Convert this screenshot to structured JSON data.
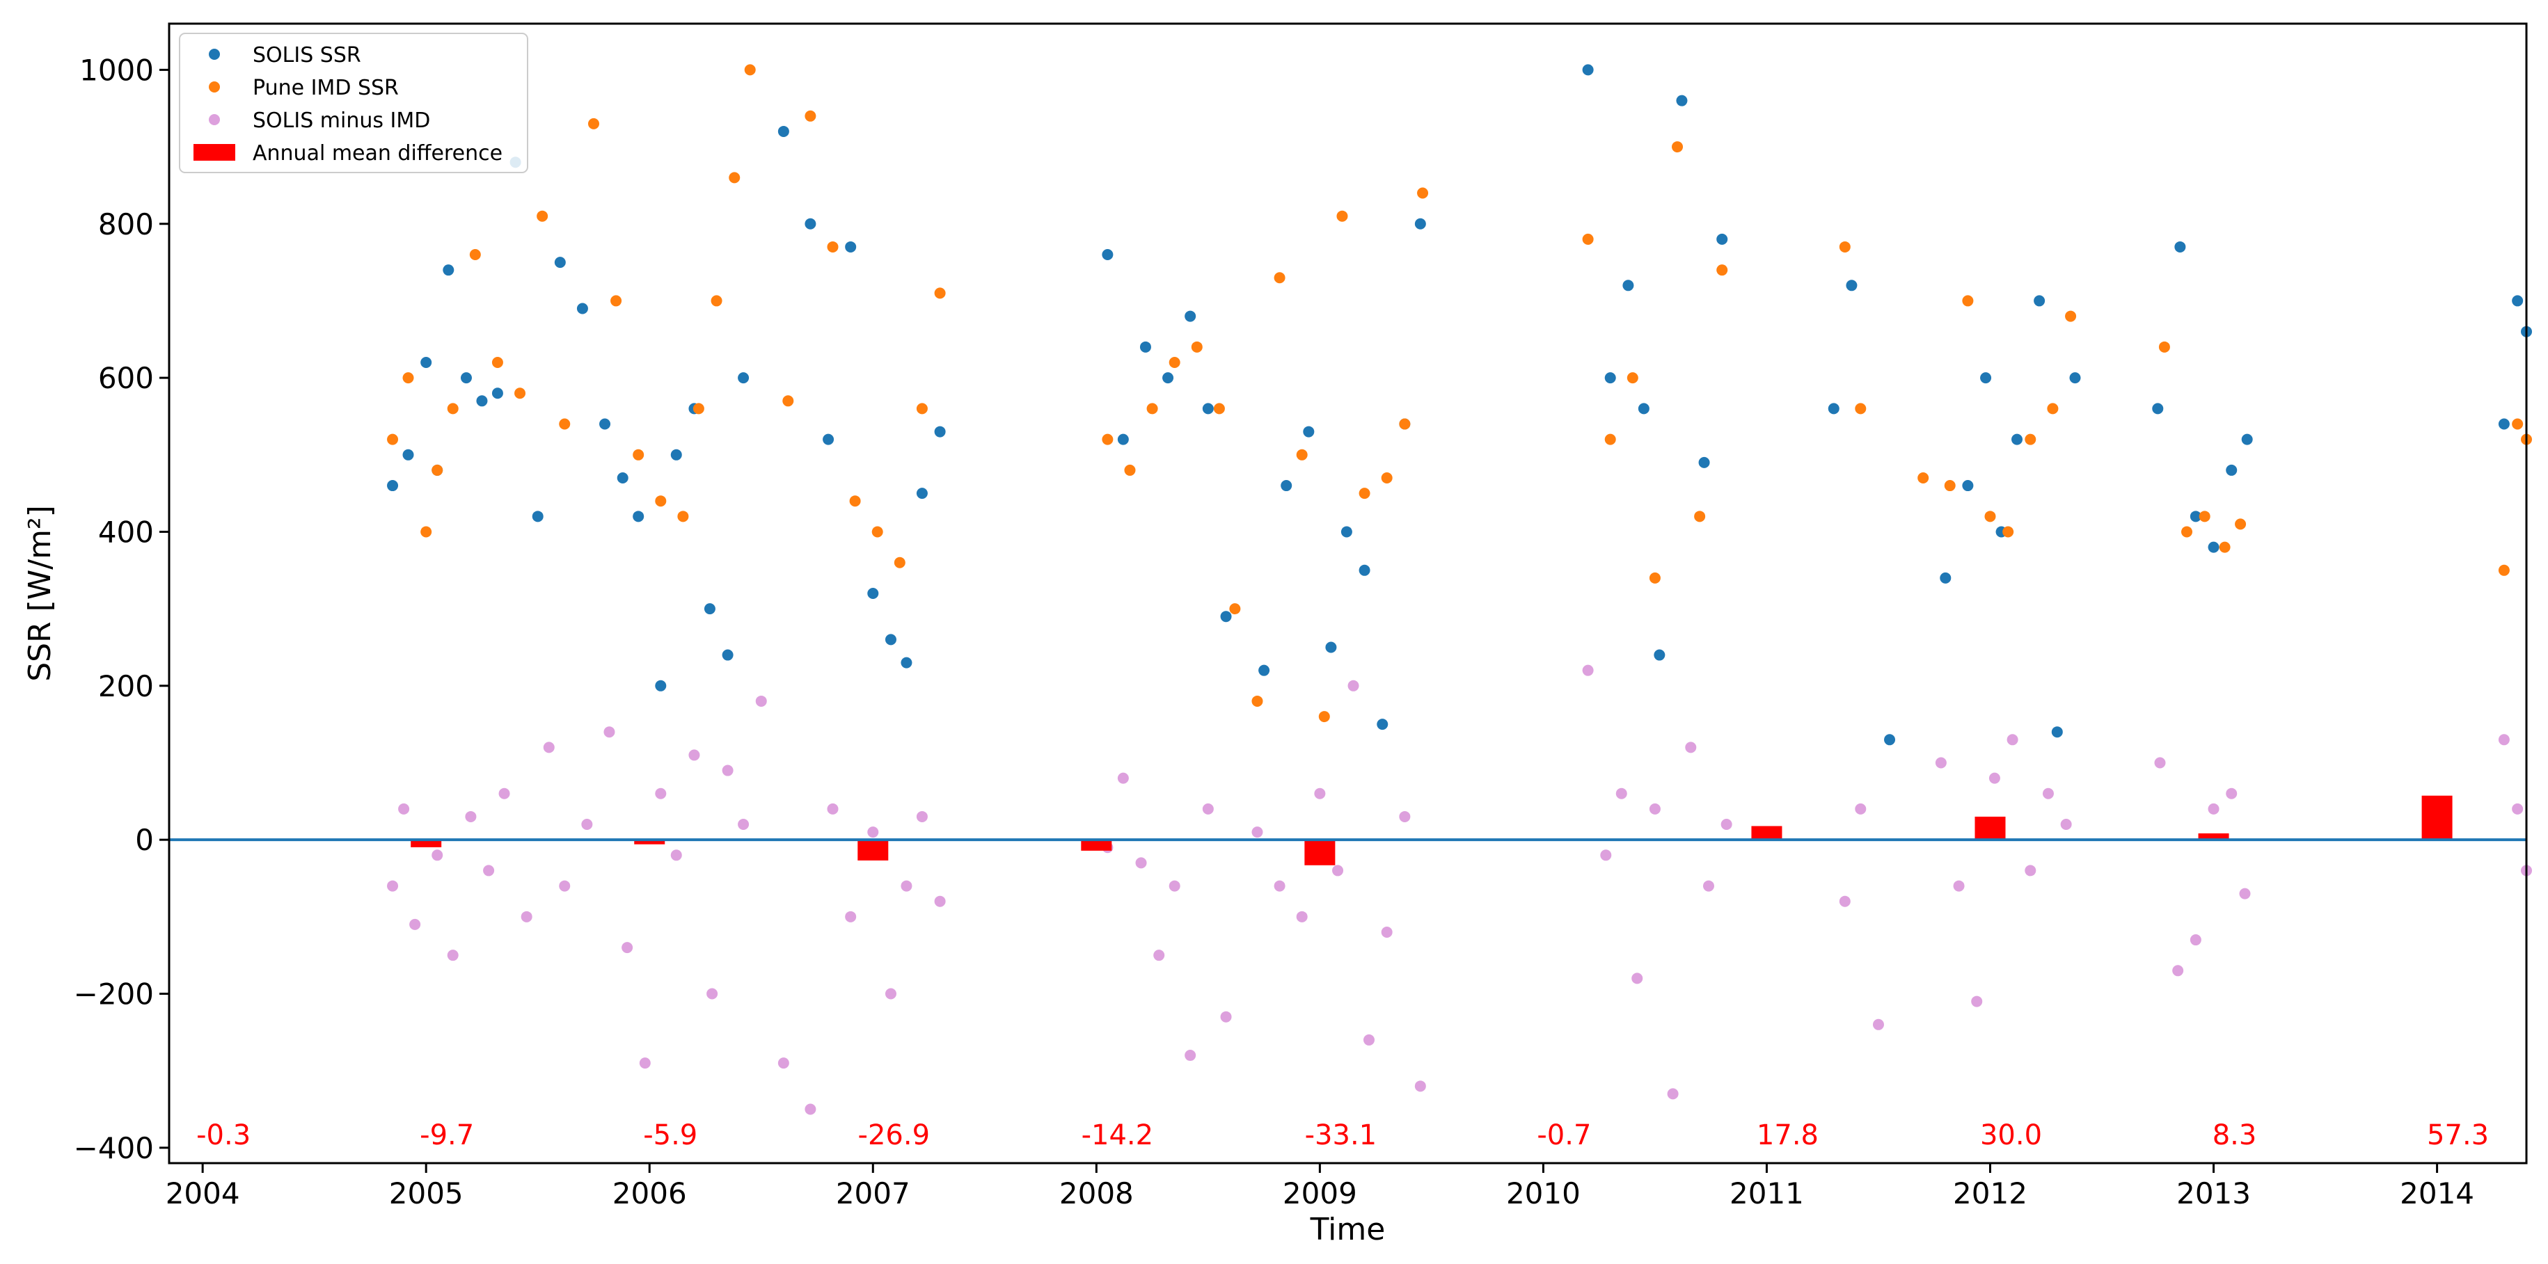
{
  "chart_data": {
    "type": "scatter",
    "title": "",
    "xlabel": "Time",
    "ylabel": "SSR [W/m²]",
    "xlim": [
      2003.85,
      2014.4
    ],
    "ylim": [
      -420,
      1060
    ],
    "grid": false,
    "legend_position": "top-left",
    "x_ticks": [
      {
        "value": 2004,
        "label": "2004"
      },
      {
        "value": 2005,
        "label": "2005"
      },
      {
        "value": 2006,
        "label": "2006"
      },
      {
        "value": 2007,
        "label": "2007"
      },
      {
        "value": 2008,
        "label": "2008"
      },
      {
        "value": 2009,
        "label": "2009"
      },
      {
        "value": 2010,
        "label": "2010"
      },
      {
        "value": 2011,
        "label": "2011"
      },
      {
        "value": 2012,
        "label": "2012"
      },
      {
        "value": 2013,
        "label": "2013"
      },
      {
        "value": 2014,
        "label": "2014"
      }
    ],
    "y_ticks": [
      {
        "value": -400,
        "label": "−400"
      },
      {
        "value": -200,
        "label": "−200"
      },
      {
        "value": 0,
        "label": "0"
      },
      {
        "value": 200,
        "label": "200"
      },
      {
        "value": 400,
        "label": "400"
      },
      {
        "value": 600,
        "label": "600"
      },
      {
        "value": 800,
        "label": "800"
      },
      {
        "value": 1000,
        "label": "1000"
      }
    ],
    "zero_line": {
      "value": 0,
      "color": "#1f77b4"
    },
    "legend": [
      {
        "label": "SOLIS SSR",
        "marker": "dot",
        "color": "#1f77b4"
      },
      {
        "label": "Pune IMD SSR",
        "marker": "dot",
        "color": "#ff7f0e"
      },
      {
        "label": "SOLIS minus IMD",
        "marker": "dot",
        "color": "#dda0dd"
      },
      {
        "label": "Annual mean difference",
        "marker": "bar",
        "color": "#ff0000"
      }
    ],
    "series": [
      {
        "name": "SOLIS SSR",
        "color": "#1f77b4",
        "x": [
          2004.85,
          2004.92,
          2005.0,
          2005.05,
          2005.1,
          2005.18,
          2005.25,
          2005.32,
          2005.4,
          2005.5,
          2005.6,
          2005.7,
          2005.8,
          2005.88,
          2005.95,
          2006.05,
          2006.12,
          2006.2,
          2006.27,
          2006.35,
          2006.42,
          2006.6,
          2006.72,
          2006.8,
          2006.9,
          2007.0,
          2007.08,
          2007.15,
          2007.22,
          2007.3,
          2008.05,
          2008.12,
          2008.22,
          2008.32,
          2008.42,
          2008.5,
          2008.58,
          2008.75,
          2008.85,
          2008.95,
          2009.05,
          2009.12,
          2009.2,
          2009.28,
          2009.38,
          2009.45,
          2010.2,
          2010.3,
          2010.38,
          2010.45,
          2010.52,
          2010.62,
          2010.72,
          2010.8,
          2011.3,
          2011.38,
          2011.55,
          2011.8,
          2011.9,
          2011.98,
          2012.05,
          2012.12,
          2012.22,
          2012.3,
          2012.38,
          2012.75,
          2012.85,
          2012.92,
          2013.0,
          2013.08,
          2013.15,
          2014.3,
          2014.36,
          2014.4
        ],
        "y": [
          460,
          500,
          620,
          480,
          740,
          600,
          570,
          580,
          880,
          420,
          750,
          690,
          540,
          470,
          420,
          200,
          500,
          560,
          300,
          240,
          600,
          920,
          800,
          520,
          770,
          320,
          260,
          230,
          450,
          530,
          760,
          520,
          640,
          600,
          680,
          560,
          290,
          220,
          460,
          530,
          250,
          400,
          350,
          150,
          540,
          800,
          1000,
          600,
          720,
          560,
          240,
          960,
          490,
          780,
          560,
          720,
          130,
          340,
          460,
          600,
          400,
          520,
          700,
          140,
          600,
          560,
          770,
          420,
          380,
          480,
          520,
          540,
          700,
          660
        ]
      },
      {
        "name": "Pune IMD SSR",
        "color": "#ff7f0e",
        "x": [
          2004.85,
          2004.92,
          2005.0,
          2005.05,
          2005.12,
          2005.22,
          2005.32,
          2005.42,
          2005.52,
          2005.62,
          2005.75,
          2005.85,
          2005.95,
          2006.05,
          2006.15,
          2006.22,
          2006.3,
          2006.38,
          2006.45,
          2006.62,
          2006.72,
          2006.82,
          2006.92,
          2007.02,
          2007.12,
          2007.22,
          2007.3,
          2008.05,
          2008.15,
          2008.25,
          2008.35,
          2008.45,
          2008.55,
          2008.62,
          2008.72,
          2008.82,
          2008.92,
          2009.02,
          2009.1,
          2009.2,
          2009.3,
          2009.38,
          2009.46,
          2010.2,
          2010.3,
          2010.4,
          2010.5,
          2010.6,
          2010.7,
          2010.8,
          2011.35,
          2011.42,
          2011.7,
          2011.82,
          2011.9,
          2012.0,
          2012.08,
          2012.18,
          2012.28,
          2012.36,
          2012.78,
          2012.88,
          2012.96,
          2013.05,
          2013.12,
          2014.3,
          2014.36,
          2014.4
        ],
        "y": [
          520,
          600,
          400,
          480,
          560,
          760,
          620,
          580,
          810,
          540,
          930,
          700,
          500,
          440,
          420,
          560,
          700,
          860,
          1000,
          570,
          940,
          770,
          440,
          400,
          360,
          560,
          710,
          520,
          480,
          560,
          620,
          640,
          560,
          300,
          180,
          730,
          500,
          160,
          810,
          450,
          470,
          540,
          840,
          780,
          520,
          600,
          340,
          900,
          420,
          740,
          770,
          560,
          470,
          460,
          700,
          420,
          400,
          520,
          560,
          680,
          640,
          400,
          420,
          380,
          410,
          350,
          540,
          520
        ]
      },
      {
        "name": "SOLIS minus IMD",
        "color": "#dda0dd",
        "x": [
          2004.85,
          2004.9,
          2004.95,
          2005.05,
          2005.12,
          2005.2,
          2005.28,
          2005.35,
          2005.45,
          2005.55,
          2005.62,
          2005.72,
          2005.82,
          2005.9,
          2005.98,
          2006.05,
          2006.12,
          2006.2,
          2006.28,
          2006.35,
          2006.42,
          2006.5,
          2006.6,
          2006.72,
          2006.82,
          2006.9,
          2007.0,
          2007.08,
          2007.15,
          2007.22,
          2007.3,
          2008.05,
          2008.12,
          2008.2,
          2008.28,
          2008.35,
          2008.42,
          2008.5,
          2008.58,
          2008.72,
          2008.82,
          2008.92,
          2009.0,
          2009.08,
          2009.15,
          2009.22,
          2009.3,
          2009.38,
          2009.45,
          2010.2,
          2010.28,
          2010.35,
          2010.42,
          2010.5,
          2010.58,
          2010.66,
          2010.74,
          2010.82,
          2011.35,
          2011.42,
          2011.5,
          2011.78,
          2011.86,
          2011.94,
          2012.02,
          2012.1,
          2012.18,
          2012.26,
          2012.34,
          2012.76,
          2012.84,
          2012.92,
          2013.0,
          2013.08,
          2013.14,
          2014.3,
          2014.36,
          2014.4
        ],
        "y": [
          -60,
          40,
          -110,
          -20,
          -150,
          30,
          -40,
          60,
          -100,
          120,
          -60,
          20,
          140,
          -140,
          -290,
          60,
          -20,
          110,
          -200,
          90,
          20,
          180,
          -290,
          -350,
          40,
          -100,
          10,
          -200,
          -60,
          30,
          -80,
          -10,
          80,
          -30,
          -150,
          -60,
          -280,
          40,
          -230,
          10,
          -60,
          -100,
          60,
          -40,
          200,
          -260,
          -120,
          30,
          -320,
          220,
          -20,
          60,
          -180,
          40,
          -330,
          120,
          -60,
          20,
          -80,
          40,
          -240,
          100,
          -60,
          -210,
          80,
          130,
          -40,
          60,
          20,
          100,
          -170,
          -130,
          40,
          60,
          -70,
          130,
          40,
          -40
        ]
      },
      {
        "name": "Annual mean difference",
        "type": "bar",
        "color": "#ff0000",
        "x": [
          2004.0,
          2005.0,
          2006.0,
          2007.0,
          2008.0,
          2009.0,
          2010.0,
          2011.0,
          2012.0,
          2013.0,
          2014.0
        ],
        "values": [
          -0.3,
          -9.7,
          -5.9,
          -26.9,
          -14.2,
          -33.1,
          -0.7,
          17.8,
          30.0,
          8.3,
          57.3
        ],
        "labels": [
          "-0.3",
          "-9.7",
          "-5.9",
          "-26.9",
          "-14.2",
          "-33.1",
          "-0.7",
          "17.8",
          "30.0",
          "8.3",
          "57.3"
        ]
      }
    ]
  }
}
